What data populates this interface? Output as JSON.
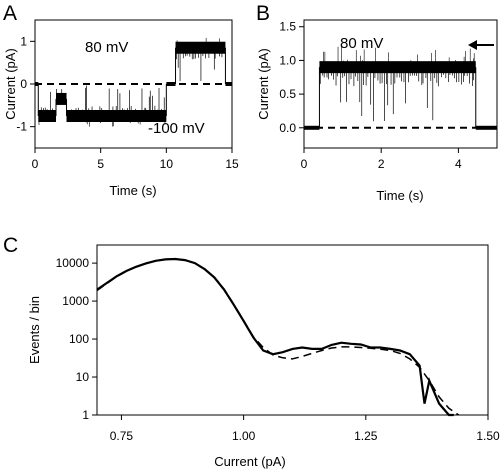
{
  "chart_data": [
    {
      "panel": "A",
      "type": "line",
      "xlabel": "Time (s)",
      "ylabel": "Current (pA)",
      "xlim": [
        0,
        15
      ],
      "ylim": [
        -1.5,
        1.5
      ],
      "xticks": [
        "0",
        "5",
        "10",
        "15"
      ],
      "yticks": [
        "-1",
        "0",
        "1"
      ],
      "annotations": [
        "80 mV",
        "-100 mV"
      ],
      "series": [
        {
          "kind": "trace",
          "open_level": -0.75,
          "closed_level": 0.0,
          "segments": [
            {
              "t_start": 0.0,
              "t_end": 0.25,
              "level": 0.0
            },
            {
              "t_start": 0.25,
              "t_end": 1.6,
              "level": -0.75
            },
            {
              "t_start": 1.6,
              "t_end": 2.4,
              "level": -0.35
            },
            {
              "t_start": 2.4,
              "t_end": 10.0,
              "level": -0.75
            },
            {
              "t_start": 10.0,
              "t_end": 10.7,
              "level": 0.0
            },
            {
              "t_start": 10.7,
              "t_end": 14.5,
              "level": 0.85
            },
            {
              "t_start": 14.5,
              "t_end": 15.0,
              "level": 0.0
            }
          ]
        },
        {
          "kind": "dashed",
          "y": 0.0
        }
      ]
    },
    {
      "panel": "B",
      "type": "line",
      "xlabel": "Time (s)",
      "ylabel": "Current (pA)",
      "xlim": [
        0,
        5
      ],
      "ylim": [
        -0.3,
        1.6
      ],
      "xticks": [
        "0",
        "2",
        "4"
      ],
      "yticks": [
        "0.0",
        "0.5",
        "1.0",
        "1.5"
      ],
      "annotations": [
        "80 mV"
      ],
      "series": [
        {
          "kind": "trace",
          "segments": [
            {
              "t_start": 0.0,
              "t_end": 0.4,
              "level": 0.0
            },
            {
              "t_start": 0.4,
              "t_end": 4.45,
              "level": 0.9
            },
            {
              "t_start": 4.45,
              "t_end": 5.0,
              "level": 0.0
            }
          ]
        },
        {
          "kind": "dashed",
          "y": 0.0
        }
      ]
    },
    {
      "panel": "C",
      "type": "line",
      "xlabel": "Current (pA)",
      "ylabel": "Events / bin",
      "xlim": [
        0.7,
        1.5
      ],
      "ylim": [
        1,
        30000
      ],
      "yscale": "log",
      "xticks": [
        "0.75",
        "1.00",
        "1.25",
        "1.50"
      ],
      "yticks": [
        "1",
        "10",
        "100",
        "1000",
        "10000"
      ],
      "series": [
        {
          "kind": "solid",
          "x": [
            0.7,
            0.72,
            0.74,
            0.76,
            0.78,
            0.8,
            0.82,
            0.84,
            0.86,
            0.88,
            0.9,
            0.92,
            0.94,
            0.96,
            0.98,
            1.0,
            1.02,
            1.04,
            1.06,
            1.08,
            1.1,
            1.12,
            1.14,
            1.16,
            1.18,
            1.2,
            1.22,
            1.24,
            1.26,
            1.28,
            1.3,
            1.32,
            1.34,
            1.36,
            1.37,
            1.38,
            1.4,
            1.42,
            1.43
          ],
          "y": [
            2000,
            3000,
            4500,
            6200,
            8000,
            9800,
            11500,
            12500,
            12800,
            12000,
            10000,
            7000,
            4200,
            2000,
            800,
            300,
            110,
            50,
            40,
            45,
            55,
            60,
            55,
            55,
            70,
            80,
            75,
            72,
            60,
            60,
            55,
            50,
            40,
            20,
            2,
            8,
            2,
            1,
            1
          ]
        },
        {
          "kind": "dashed",
          "x": [
            0.7,
            0.72,
            0.74,
            0.76,
            0.78,
            0.8,
            0.82,
            0.84,
            0.86,
            0.88,
            0.9,
            0.92,
            0.94,
            0.96,
            0.98,
            1.0,
            1.02,
            1.04,
            1.06,
            1.08,
            1.1,
            1.12,
            1.14,
            1.16,
            1.18,
            1.2,
            1.22,
            1.24,
            1.26,
            1.28,
            1.3,
            1.32,
            1.34,
            1.36,
            1.38,
            1.4,
            1.42,
            1.44
          ],
          "y": [
            1900,
            2900,
            4400,
            6100,
            8000,
            9900,
            11600,
            12600,
            12900,
            12100,
            10100,
            7100,
            4300,
            2050,
            820,
            310,
            115,
            60,
            38,
            32,
            30,
            35,
            42,
            50,
            58,
            62,
            62,
            60,
            57,
            54,
            50,
            42,
            30,
            18,
            8,
            3,
            1.5,
            1
          ]
        }
      ]
    }
  ],
  "labels": {
    "a": "A",
    "b": "B",
    "c": "C"
  }
}
